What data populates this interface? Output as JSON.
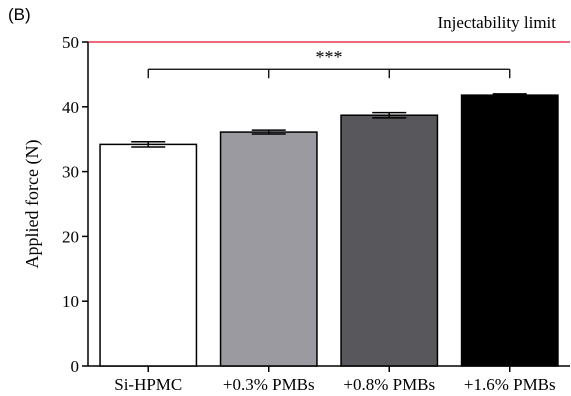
{
  "panel_label": "(B)",
  "chart_data": {
    "type": "bar",
    "categories": [
      "Si-HPMC",
      "+0.3% PMBs",
      "+0.8% PMBs",
      "+1.6% PMBs"
    ],
    "values": [
      34.2,
      36.1,
      38.7,
      41.8
    ],
    "errors": [
      0.4,
      0.3,
      0.4,
      0.2
    ],
    "bar_colors": [
      "#ffffff",
      "#9a9aa0",
      "#58585c",
      "#000000"
    ],
    "ylabel": "Applied force (N)",
    "xlabel": "",
    "ylim": [
      0,
      50
    ],
    "yticks": [
      0,
      10,
      20,
      30,
      40,
      50
    ],
    "grid": false,
    "reference_line": {
      "value": 50,
      "label": "Injectability limit",
      "color": "#e8384f"
    },
    "significance": {
      "label": "***",
      "from_category": 0,
      "to_category": 3
    }
  }
}
